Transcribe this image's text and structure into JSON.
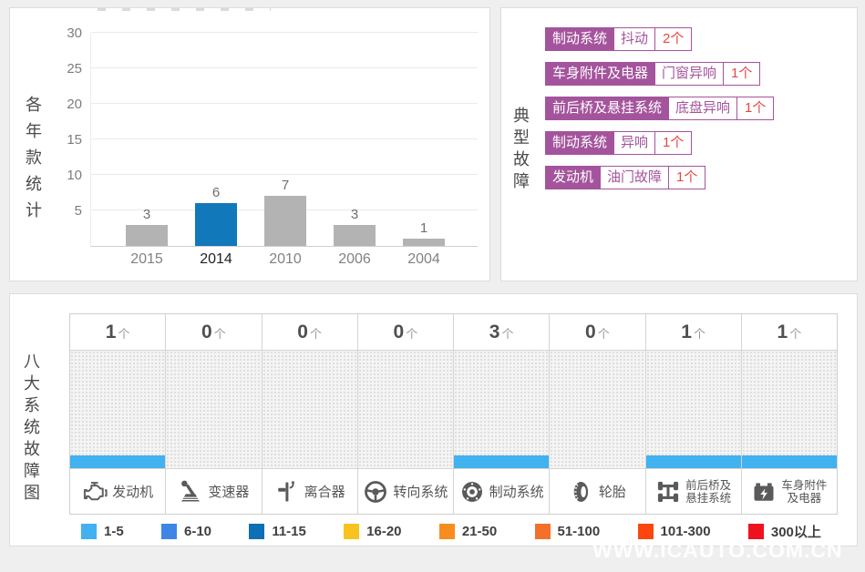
{
  "watermark": "WWW.ICAUTO.COM.CN",
  "colors": {
    "accent_blue": "#1178ba",
    "bar_gray": "#b3b3b3",
    "tag_purple": "#a4549c",
    "count_red": "#e84545",
    "range_bar_blue": "#41b1f0"
  },
  "yearly_panel": {
    "side_label": "各年款统计"
  },
  "typical_panel": {
    "side_label": "典型故障",
    "items": [
      {
        "system": "制动系统",
        "fault": "抖动",
        "count": "2个"
      },
      {
        "system": "车身附件及电器",
        "fault": "门窗异响",
        "count": "1个"
      },
      {
        "system": "前后桥及悬挂系统",
        "fault": "底盘异响",
        "count": "1个"
      },
      {
        "system": "制动系统",
        "fault": "异响",
        "count": "1个"
      },
      {
        "system": "发动机",
        "fault": "油门故障",
        "count": "1个"
      }
    ]
  },
  "systems_panel": {
    "side_label": "八大系统故障图",
    "unit": "个",
    "columns": [
      {
        "count": "1",
        "icon": "engine-icon",
        "label_lines": [
          "发动机"
        ]
      },
      {
        "count": "0",
        "icon": "gearshift-icon",
        "label_lines": [
          "变速器"
        ]
      },
      {
        "count": "0",
        "icon": "clutch-icon",
        "label_lines": [
          "离合器"
        ]
      },
      {
        "count": "0",
        "icon": "steering-icon",
        "label_lines": [
          "转向系统"
        ]
      },
      {
        "count": "3",
        "icon": "brake-icon",
        "label_lines": [
          "制动系统"
        ]
      },
      {
        "count": "0",
        "icon": "tire-icon",
        "label_lines": [
          "轮胎"
        ]
      },
      {
        "count": "1",
        "icon": "axle-icon",
        "label_lines": [
          "前后桥及",
          "悬挂系统"
        ]
      },
      {
        "count": "1",
        "icon": "battery-icon",
        "label_lines": [
          "车身附件",
          "及电器"
        ]
      }
    ],
    "legend": [
      {
        "label": "1-5",
        "color": "#41b1f0"
      },
      {
        "label": "6-10",
        "color": "#3e86e6"
      },
      {
        "label": "11-15",
        "color": "#0d6fb4"
      },
      {
        "label": "16-20",
        "color": "#f8c31f"
      },
      {
        "label": "21-50",
        "color": "#f78d1f"
      },
      {
        "label": "51-100",
        "color": "#f4702a"
      },
      {
        "label": "101-300",
        "color": "#fb470e"
      },
      {
        "label": "300以上",
        "color": "#f0111f"
      }
    ]
  },
  "chart_data": [
    {
      "type": "bar",
      "title": "各年款统计",
      "categories": [
        "2015",
        "2014",
        "2010",
        "2006",
        "2004"
      ],
      "values": [
        3,
        6,
        7,
        3,
        1
      ],
      "highlighted_category": "2014",
      "xlabel": "",
      "ylabel": "",
      "ylim": [
        0,
        30
      ],
      "yticks": [
        5,
        10,
        15,
        20,
        25,
        30
      ],
      "grid": true,
      "bar_color_default": "#b3b3b3",
      "bar_color_highlight": "#1178ba"
    },
    {
      "type": "bar",
      "title": "八大系统故障图",
      "categories": [
        "发动机",
        "变速器",
        "离合器",
        "转向系统",
        "制动系统",
        "轮胎",
        "前后桥及悬挂系统",
        "车身附件及电器"
      ],
      "values": [
        1,
        0,
        0,
        0,
        3,
        0,
        1,
        1
      ],
      "value_unit": "个",
      "legend_position": "bottom",
      "legend_ranges": [
        "1-5",
        "6-10",
        "11-15",
        "16-20",
        "21-50",
        "51-100",
        "101-300",
        "300以上"
      ]
    }
  ]
}
